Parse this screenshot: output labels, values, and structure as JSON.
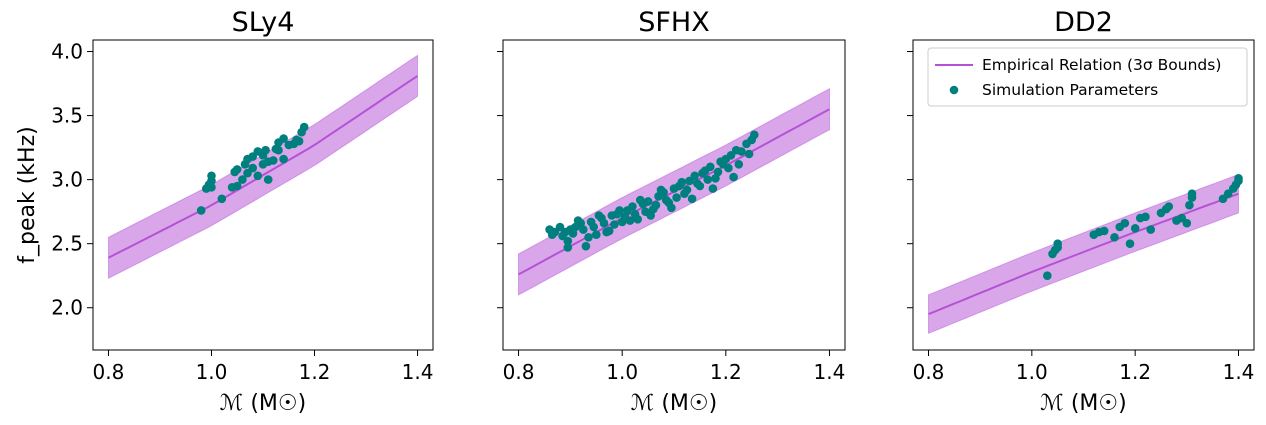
{
  "colors": {
    "relation": "#b452d6",
    "band": "#d9a6ea",
    "points": "#007f7f"
  },
  "chart_data": [
    {
      "type": "line",
      "title": "SLy4",
      "xlabel": "ℳ (M☉)",
      "ylabel": "f_peak (kHz)",
      "xlim": [
        0.77,
        1.43
      ],
      "ylim": [
        1.67,
        4.09
      ],
      "xticks": [
        "0.8",
        "1.0",
        "1.2",
        "1.4"
      ],
      "yticks": [
        "2.0",
        "2.5",
        "3.0",
        "3.5",
        "4.0"
      ],
      "relation": {
        "x": [
          0.8,
          1.0,
          1.2,
          1.4
        ],
        "y": [
          2.39,
          2.8,
          3.27,
          3.81
        ]
      },
      "band_width": 0.16,
      "points": [
        [
          0.98,
          2.76
        ],
        [
          0.99,
          2.93
        ],
        [
          0.995,
          2.96
        ],
        [
          1.0,
          2.94
        ],
        [
          1.0,
          2.99
        ],
        [
          1.0,
          3.03
        ],
        [
          1.02,
          2.85
        ],
        [
          1.04,
          2.94
        ],
        [
          1.045,
          3.06
        ],
        [
          1.05,
          2.95
        ],
        [
          1.05,
          3.08
        ],
        [
          1.06,
          3.0
        ],
        [
          1.065,
          3.12
        ],
        [
          1.07,
          3.05
        ],
        [
          1.07,
          3.16
        ],
        [
          1.08,
          3.09
        ],
        [
          1.08,
          3.18
        ],
        [
          1.09,
          3.03
        ],
        [
          1.09,
          3.22
        ],
        [
          1.1,
          3.12
        ],
        [
          1.1,
          3.19
        ],
        [
          1.105,
          3.23
        ],
        [
          1.11,
          3.14
        ],
        [
          1.11,
          3.0
        ],
        [
          1.12,
          3.15
        ],
        [
          1.125,
          3.24
        ],
        [
          1.13,
          3.23
        ],
        [
          1.13,
          3.29
        ],
        [
          1.14,
          3.16
        ],
        [
          1.14,
          3.32
        ],
        [
          1.15,
          3.27
        ],
        [
          1.16,
          3.28
        ],
        [
          1.165,
          3.31
        ],
        [
          1.17,
          3.3
        ],
        [
          1.175,
          3.37
        ],
        [
          1.18,
          3.41
        ]
      ]
    },
    {
      "type": "line",
      "title": "SFHX",
      "xlabel": "ℳ (M☉)",
      "ylabel": "",
      "xlim": [
        0.77,
        1.43
      ],
      "ylim": [
        1.67,
        4.09
      ],
      "xticks": [
        "0.8",
        "1.0",
        "1.2",
        "1.4"
      ],
      "yticks": [],
      "relation": {
        "x": [
          0.8,
          1.0,
          1.2,
          1.4
        ],
        "y": [
          2.26,
          2.7,
          3.11,
          3.55
        ]
      },
      "band_width": 0.16,
      "points": [
        [
          0.86,
          2.61
        ],
        [
          0.87,
          2.59
        ],
        [
          0.88,
          2.63
        ],
        [
          0.89,
          2.59
        ],
        [
          0.895,
          2.47
        ],
        [
          0.9,
          2.61
        ],
        [
          0.91,
          2.63
        ],
        [
          0.92,
          2.66
        ],
        [
          0.93,
          2.48
        ],
        [
          0.94,
          2.67
        ],
        [
          0.95,
          2.57
        ],
        [
          0.96,
          2.7
        ],
        [
          0.97,
          2.59
        ],
        [
          0.98,
          2.72
        ],
        [
          0.99,
          2.73
        ],
        [
          1.0,
          2.67
        ],
        [
          1.01,
          2.76
        ],
        [
          1.02,
          2.79
        ],
        [
          1.03,
          2.69
        ],
        [
          1.04,
          2.81
        ],
        [
          1.05,
          2.83
        ],
        [
          1.06,
          2.77
        ],
        [
          1.07,
          2.87
        ],
        [
          1.08,
          2.9
        ],
        [
          1.09,
          2.82
        ],
        [
          1.1,
          2.93
        ],
        [
          1.11,
          2.95
        ],
        [
          1.12,
          2.89
        ],
        [
          1.13,
          2.99
        ],
        [
          1.14,
          3.03
        ],
        [
          1.15,
          2.95
        ],
        [
          1.16,
          3.07
        ],
        [
          1.17,
          3.1
        ],
        [
          1.18,
          3.01
        ],
        [
          1.19,
          3.14
        ],
        [
          1.2,
          3.16
        ],
        [
          1.21,
          3.19
        ],
        [
          1.22,
          3.23
        ],
        [
          1.23,
          3.22
        ],
        [
          1.24,
          3.28
        ],
        [
          1.25,
          3.31
        ],
        [
          1.255,
          3.35
        ],
        [
          0.865,
          2.57
        ],
        [
          0.885,
          2.56
        ],
        [
          0.905,
          2.58
        ],
        [
          0.925,
          2.61
        ],
        [
          0.945,
          2.63
        ],
        [
          0.965,
          2.66
        ],
        [
          0.985,
          2.65
        ],
        [
          1.005,
          2.71
        ],
        [
          1.025,
          2.73
        ],
        [
          1.045,
          2.75
        ],
        [
          1.065,
          2.8
        ],
        [
          1.085,
          2.84
        ],
        [
          1.105,
          2.86
        ],
        [
          1.125,
          2.92
        ],
        [
          1.145,
          2.97
        ],
        [
          1.165,
          3.0
        ],
        [
          1.185,
          3.06
        ],
        [
          1.205,
          3.09
        ],
        [
          1.225,
          3.12
        ],
        [
          1.245,
          3.2
        ],
        [
          0.895,
          2.52
        ],
        [
          0.935,
          2.55
        ],
        [
          0.975,
          2.6
        ],
        [
          1.015,
          2.68
        ],
        [
          1.055,
          2.72
        ],
        [
          1.095,
          2.78
        ],
        [
          1.135,
          2.85
        ],
        [
          1.175,
          2.93
        ],
        [
          1.215,
          3.02
        ],
        [
          0.915,
          2.68
        ],
        [
          0.955,
          2.72
        ],
        [
          0.995,
          2.76
        ],
        [
          1.035,
          2.84
        ],
        [
          1.075,
          2.92
        ],
        [
          1.115,
          2.98
        ],
        [
          1.155,
          3.05
        ],
        [
          1.195,
          3.12
        ]
      ]
    },
    {
      "type": "line",
      "title": "DD2",
      "xlabel": "ℳ (M☉)",
      "ylabel": "",
      "xlim": [
        0.77,
        1.43
      ],
      "ylim": [
        1.67,
        4.09
      ],
      "xticks": [
        "0.8",
        "1.0",
        "1.2",
        "1.4"
      ],
      "yticks": [],
      "relation": {
        "x": [
          0.8,
          1.0,
          1.2,
          1.4
        ],
        "y": [
          1.95,
          2.28,
          2.59,
          2.89
        ]
      },
      "band_width": 0.15,
      "points": [
        [
          1.03,
          2.25
        ],
        [
          1.04,
          2.42
        ],
        [
          1.045,
          2.45
        ],
        [
          1.05,
          2.47
        ],
        [
          1.05,
          2.5
        ],
        [
          1.12,
          2.57
        ],
        [
          1.13,
          2.59
        ],
        [
          1.14,
          2.6
        ],
        [
          1.16,
          2.55
        ],
        [
          1.17,
          2.63
        ],
        [
          1.18,
          2.66
        ],
        [
          1.19,
          2.5
        ],
        [
          1.2,
          2.62
        ],
        [
          1.21,
          2.7
        ],
        [
          1.22,
          2.71
        ],
        [
          1.23,
          2.61
        ],
        [
          1.25,
          2.74
        ],
        [
          1.26,
          2.77
        ],
        [
          1.265,
          2.79
        ],
        [
          1.28,
          2.68
        ],
        [
          1.29,
          2.7
        ],
        [
          1.3,
          2.66
        ],
        [
          1.305,
          2.8
        ],
        [
          1.31,
          2.86
        ],
        [
          1.31,
          2.89
        ],
        [
          1.37,
          2.85
        ],
        [
          1.38,
          2.89
        ],
        [
          1.39,
          2.93
        ],
        [
          1.395,
          2.96
        ],
        [
          1.4,
          2.99
        ],
        [
          1.4,
          3.01
        ]
      ],
      "legend": {
        "placement": "top-right",
        "entries": [
          "Empirical Relation (3σ Bounds)",
          "Simulation Parameters"
        ]
      }
    }
  ]
}
